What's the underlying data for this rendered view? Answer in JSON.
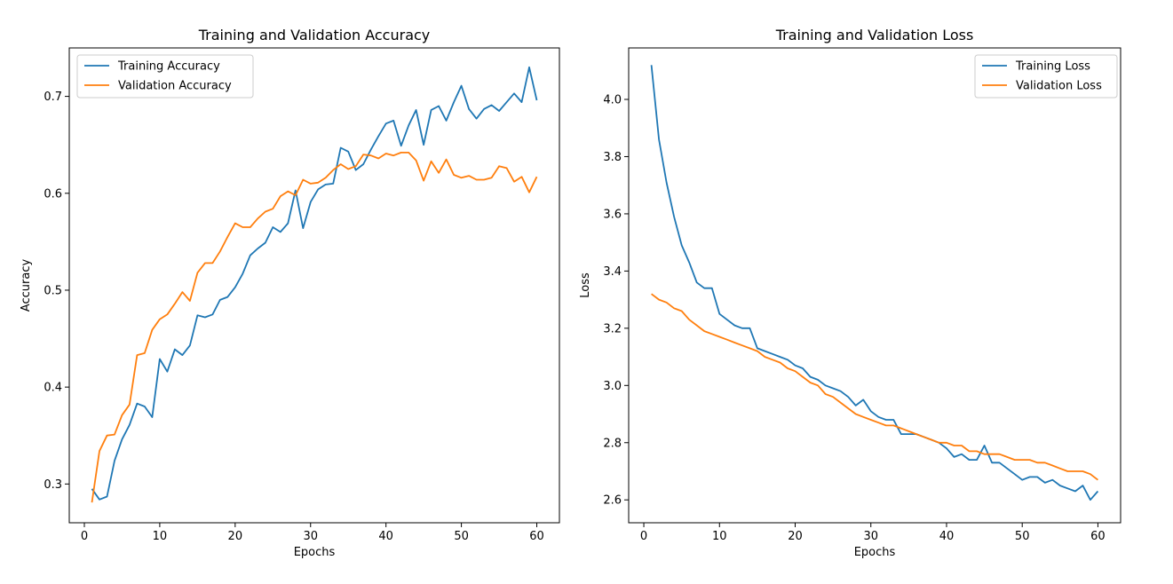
{
  "colors": {
    "training": "#1f77b4",
    "validation": "#ff7f0e"
  },
  "chart_data": [
    {
      "type": "line",
      "title": "Training and Validation Accuracy",
      "xlabel": "Epochs",
      "ylabel": "Accuracy",
      "xlim": [
        -2,
        63
      ],
      "ylim": [
        0.26,
        0.75
      ],
      "xticks": [
        0,
        10,
        20,
        30,
        40,
        50,
        60
      ],
      "yticks": [
        0.3,
        0.4,
        0.5,
        0.6,
        0.7
      ],
      "ytick_labels": [
        "0.3",
        "0.4",
        "0.5",
        "0.6",
        "0.7"
      ],
      "grid": false,
      "legend": "top-left",
      "x": [
        1,
        2,
        3,
        4,
        5,
        6,
        7,
        8,
        9,
        10,
        11,
        12,
        13,
        14,
        15,
        16,
        17,
        18,
        19,
        20,
        21,
        22,
        23,
        24,
        25,
        26,
        27,
        28,
        29,
        30,
        31,
        32,
        33,
        34,
        35,
        36,
        37,
        38,
        39,
        40,
        41,
        42,
        43,
        44,
        45,
        46,
        47,
        48,
        49,
        50,
        51,
        52,
        53,
        54,
        55,
        56,
        57,
        58,
        59,
        60
      ],
      "series": [
        {
          "name": "Training Accuracy",
          "color": "#1f77b4",
          "values": [
            0.295,
            0.284,
            0.287,
            0.324,
            0.346,
            0.361,
            0.383,
            0.38,
            0.369,
            0.429,
            0.416,
            0.439,
            0.433,
            0.443,
            0.474,
            0.472,
            0.475,
            0.49,
            0.493,
            0.503,
            0.517,
            0.536,
            0.543,
            0.549,
            0.565,
            0.56,
            0.569,
            0.603,
            0.564,
            0.591,
            0.604,
            0.609,
            0.61,
            0.647,
            0.643,
            0.624,
            0.63,
            0.645,
            0.659,
            0.672,
            0.675,
            0.649,
            0.67,
            0.686,
            0.65,
            0.686,
            0.69,
            0.675,
            0.694,
            0.711,
            0.687,
            0.677,
            0.687,
            0.691,
            0.685,
            0.694,
            0.703,
            0.694,
            0.73,
            0.696
          ]
        },
        {
          "name": "Validation Accuracy",
          "color": "#ff7f0e",
          "values": [
            0.281,
            0.334,
            0.35,
            0.351,
            0.371,
            0.382,
            0.433,
            0.435,
            0.459,
            0.47,
            0.475,
            0.486,
            0.498,
            0.489,
            0.518,
            0.528,
            0.528,
            0.54,
            0.555,
            0.569,
            0.565,
            0.565,
            0.574,
            0.581,
            0.584,
            0.597,
            0.602,
            0.598,
            0.614,
            0.61,
            0.611,
            0.616,
            0.624,
            0.63,
            0.625,
            0.628,
            0.64,
            0.639,
            0.636,
            0.641,
            0.639,
            0.642,
            0.642,
            0.634,
            0.613,
            0.633,
            0.621,
            0.635,
            0.619,
            0.616,
            0.618,
            0.614,
            0.614,
            0.616,
            0.628,
            0.626,
            0.612,
            0.617,
            0.601,
            0.617
          ]
        }
      ]
    },
    {
      "type": "line",
      "title": "Training and Validation Loss",
      "xlabel": "Epochs",
      "ylabel": "Loss",
      "xlim": [
        -2,
        63
      ],
      "ylim": [
        2.52,
        4.18
      ],
      "xticks": [
        0,
        10,
        20,
        30,
        40,
        50,
        60
      ],
      "yticks": [
        2.6,
        2.8,
        3.0,
        3.2,
        3.4,
        3.6,
        3.8,
        4.0
      ],
      "ytick_labels": [
        "2.6",
        "2.8",
        "3.0",
        "3.2",
        "3.4",
        "3.6",
        "3.8",
        "4.0"
      ],
      "grid": false,
      "legend": "top-right",
      "x": [
        1,
        2,
        3,
        4,
        5,
        6,
        7,
        8,
        9,
        10,
        11,
        12,
        13,
        14,
        15,
        16,
        17,
        18,
        19,
        20,
        21,
        22,
        23,
        24,
        25,
        26,
        27,
        28,
        29,
        30,
        31,
        32,
        33,
        34,
        35,
        36,
        37,
        38,
        39,
        40,
        41,
        42,
        43,
        44,
        45,
        46,
        47,
        48,
        49,
        50,
        51,
        52,
        53,
        54,
        55,
        56,
        57,
        58,
        59,
        60
      ],
      "series": [
        {
          "name": "Training Loss",
          "color": "#1f77b4",
          "values": [
            4.12,
            3.86,
            3.71,
            3.59,
            3.49,
            3.43,
            3.36,
            3.34,
            3.34,
            3.25,
            3.23,
            3.21,
            3.2,
            3.2,
            3.13,
            3.12,
            3.11,
            3.1,
            3.09,
            3.07,
            3.06,
            3.03,
            3.02,
            3.0,
            2.99,
            2.98,
            2.96,
            2.93,
            2.95,
            2.91,
            2.89,
            2.88,
            2.88,
            2.83,
            2.83,
            2.83,
            2.82,
            2.81,
            2.8,
            2.78,
            2.75,
            2.76,
            2.74,
            2.74,
            2.79,
            2.73,
            2.73,
            2.71,
            2.69,
            2.67,
            2.68,
            2.68,
            2.66,
            2.67,
            2.65,
            2.64,
            2.63,
            2.65,
            2.6,
            2.63
          ]
        },
        {
          "name": "Validation Loss",
          "color": "#ff7f0e",
          "values": [
            3.32,
            3.3,
            3.29,
            3.27,
            3.26,
            3.23,
            3.21,
            3.19,
            3.18,
            3.17,
            3.16,
            3.15,
            3.14,
            3.13,
            3.12,
            3.1,
            3.09,
            3.08,
            3.06,
            3.05,
            3.03,
            3.01,
            3.0,
            2.97,
            2.96,
            2.94,
            2.92,
            2.9,
            2.89,
            2.88,
            2.87,
            2.86,
            2.86,
            2.85,
            2.84,
            2.83,
            2.82,
            2.81,
            2.8,
            2.8,
            2.79,
            2.79,
            2.77,
            2.77,
            2.76,
            2.76,
            2.76,
            2.75,
            2.74,
            2.74,
            2.74,
            2.73,
            2.73,
            2.72,
            2.71,
            2.7,
            2.7,
            2.7,
            2.69,
            2.67
          ]
        }
      ]
    }
  ]
}
